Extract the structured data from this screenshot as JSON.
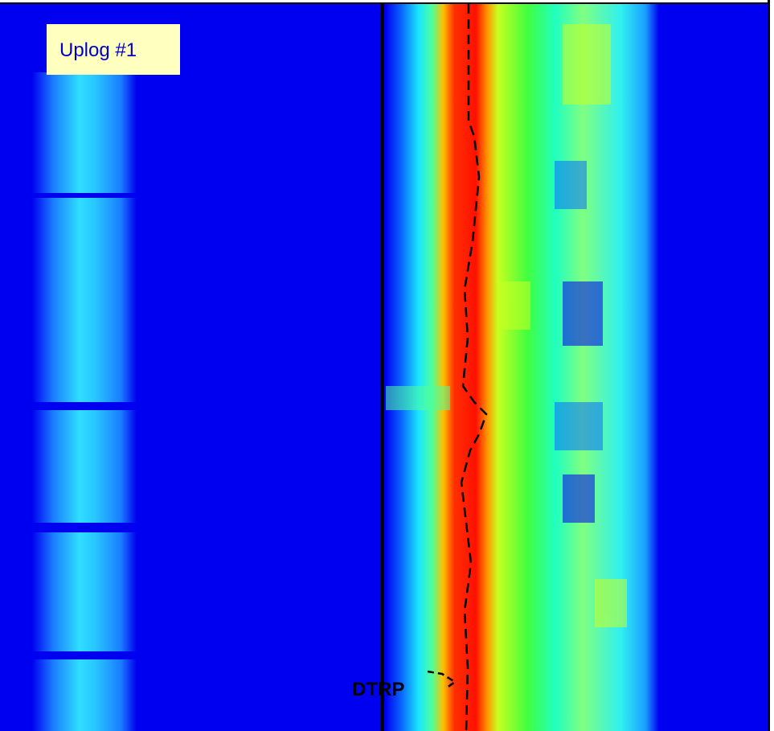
{
  "panel_label": "Uplog #1",
  "annotation": "DTRP"
}
